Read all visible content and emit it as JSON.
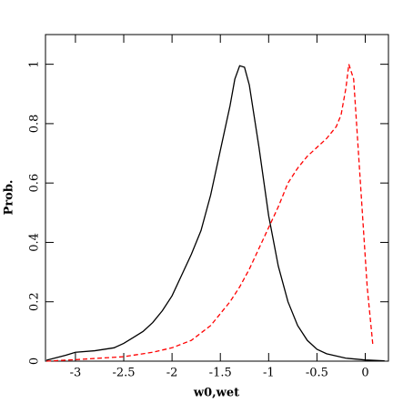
{
  "chart_data": {
    "type": "line",
    "xlabel": "w0,wet",
    "ylabel": "Prob.",
    "xlim": [
      -3.31,
      0.24
    ],
    "ylim": [
      0,
      1.1
    ],
    "xticks": [
      -3,
      -2.5,
      -2,
      -1.5,
      -1,
      -0.5,
      0
    ],
    "yticks": [
      0,
      0.2,
      0.4,
      0.6,
      0.8,
      1
    ],
    "series": [
      {
        "color": "#000000",
        "dash": "solid",
        "x": [
          -3.3,
          -3.1,
          -3.0,
          -2.8,
          -2.6,
          -2.5,
          -2.4,
          -2.3,
          -2.2,
          -2.1,
          -2.0,
          -1.9,
          -1.8,
          -1.7,
          -1.6,
          -1.5,
          -1.4,
          -1.35,
          -1.3,
          -1.25,
          -1.2,
          -1.1,
          -1.0,
          -0.9,
          -0.8,
          -0.7,
          -0.6,
          -0.5,
          -0.4,
          -0.2,
          0,
          0.2
        ],
        "values": [
          0.003,
          0.02,
          0.03,
          0.035,
          0.045,
          0.06,
          0.08,
          0.1,
          0.13,
          0.17,
          0.22,
          0.29,
          0.36,
          0.44,
          0.56,
          0.71,
          0.86,
          0.95,
          0.995,
          0.99,
          0.93,
          0.72,
          0.49,
          0.32,
          0.2,
          0.12,
          0.07,
          0.04,
          0.025,
          0.01,
          0.004,
          0.001
        ]
      },
      {
        "color": "#ff0000",
        "dash": "dashed",
        "x": [
          -3.3,
          -3.0,
          -2.5,
          -2.2,
          -2.0,
          -1.8,
          -1.6,
          -1.5,
          -1.4,
          -1.3,
          -1.2,
          -1.1,
          -1.0,
          -0.9,
          -0.8,
          -0.7,
          -0.6,
          -0.5,
          -0.4,
          -0.3,
          -0.25,
          -0.2,
          -0.17,
          -0.12,
          -0.05,
          0.02,
          0.08
        ],
        "values": [
          0,
          0.005,
          0.015,
          0.03,
          0.045,
          0.07,
          0.12,
          0.16,
          0.2,
          0.25,
          0.31,
          0.38,
          0.45,
          0.52,
          0.6,
          0.65,
          0.69,
          0.72,
          0.75,
          0.79,
          0.83,
          0.92,
          1.0,
          0.95,
          0.6,
          0.25,
          0.05
        ]
      }
    ]
  }
}
